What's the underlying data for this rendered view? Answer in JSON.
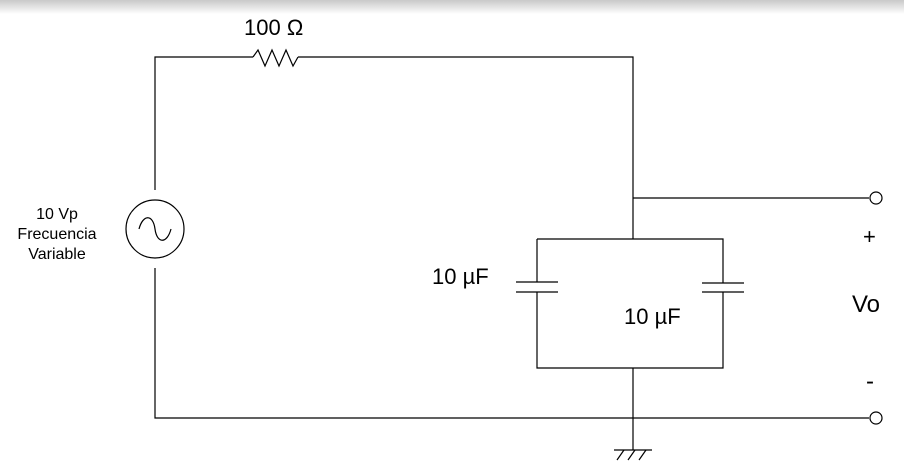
{
  "circuit": {
    "resistor_label": "100 Ω",
    "source_label_line1": "10 Vp",
    "source_label_line2": "Frecuencia",
    "source_label_line3": "Variable",
    "capacitor1_label": "10 µF",
    "capacitor2_label": "10 µF",
    "output_plus": "+",
    "output_label": "Vo",
    "output_minus": "-"
  },
  "colors": {
    "wire": "#000000",
    "background": "#ffffff"
  }
}
